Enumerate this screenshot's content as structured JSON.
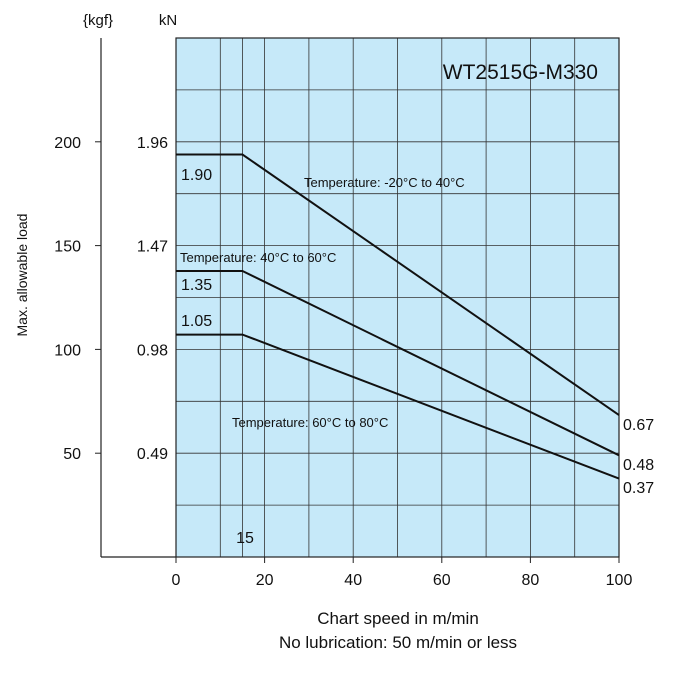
{
  "chart_data": {
    "type": "line",
    "title": "WT2515G-M330",
    "xlabel": "Chart speed in m/min",
    "xnote": "No lubrication: 50 m/min or less",
    "ylabel": "Max. allowable load",
    "xlim": [
      0,
      100
    ],
    "ylim": [
      0,
      2.45
    ],
    "xticks": [
      "0",
      "20",
      "40",
      "60",
      "80",
      "100"
    ],
    "y_unit_kn": "kN",
    "y_unit_kgf": "{kgf}",
    "yticks_kn": [
      "0.49",
      "0.98",
      "1.47",
      "1.96"
    ],
    "yticks_kgf": [
      "50",
      "100",
      "150",
      "200"
    ],
    "x_marker": "15",
    "background_color": "#c6e9f9",
    "grid": true,
    "series": [
      {
        "name": "Temperature: -20°C to 40°C",
        "x": [
          0,
          15,
          100
        ],
        "y": [
          1.9,
          1.9,
          0.67
        ],
        "start_label": "1.90",
        "end_label": "0.67"
      },
      {
        "name": "Temperature: 40°C to 60°C",
        "x": [
          0,
          15,
          100
        ],
        "y": [
          1.35,
          1.35,
          0.48
        ],
        "start_label": "1.35",
        "end_label": "0.48"
      },
      {
        "name": "Temperature: 60°C to 80°C",
        "x": [
          0,
          15,
          100
        ],
        "y": [
          1.05,
          1.05,
          0.37
        ],
        "start_label": "1.05",
        "end_label": "0.37"
      }
    ]
  }
}
